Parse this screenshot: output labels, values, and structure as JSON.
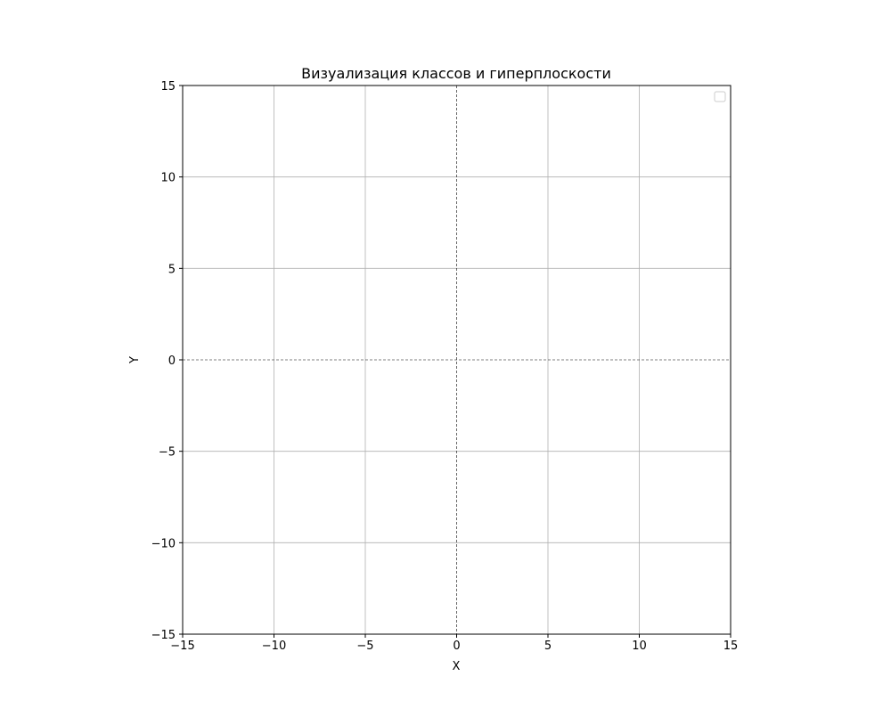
{
  "chart_data": {
    "type": "scatter",
    "title": "Визуализация классов и гиперплоскости",
    "xlabel": "X",
    "ylabel": "Y",
    "xlim": [
      -15,
      15
    ],
    "ylim": [
      -15,
      15
    ],
    "xticks": [
      -15,
      -10,
      -5,
      0,
      5,
      10,
      15
    ],
    "yticks": [
      -15,
      -10,
      -5,
      0,
      5,
      10,
      15
    ],
    "xtick_labels": [
      "−15",
      "−10",
      "−5",
      "0",
      "5",
      "10",
      "15"
    ],
    "ytick_labels": [
      "−15",
      "−10",
      "−5",
      "0",
      "5",
      "10",
      "15"
    ],
    "grid": true,
    "zero_lines": true,
    "series": [],
    "legend": {
      "placement": "upper-right",
      "entries": []
    }
  }
}
